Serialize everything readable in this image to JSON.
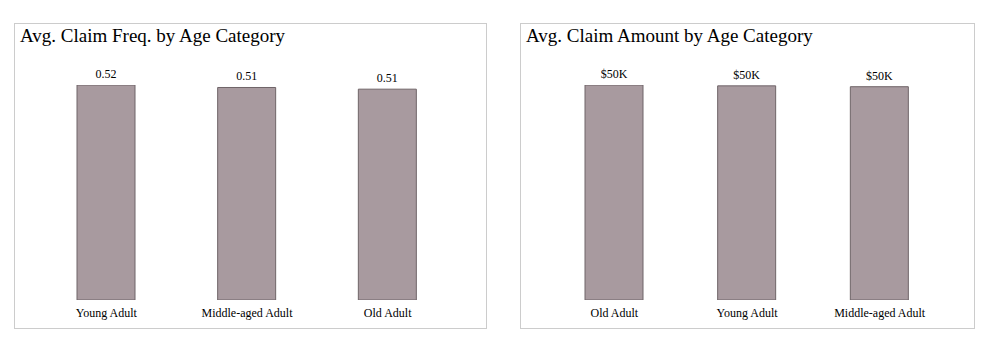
{
  "chart_data": [
    {
      "type": "bar",
      "title": "Avg. Claim Freq. by Age Category",
      "categories": [
        "Young Adult",
        "Middle-aged Adult",
        "Old Adult"
      ],
      "values": [
        0.517,
        0.511,
        0.507
      ],
      "value_labels": [
        "0.52",
        "0.51",
        "0.51"
      ],
      "color": "#a89a9f",
      "ylim": [
        0,
        0.517
      ],
      "data_labels": true,
      "tick_labels": "x"
    },
    {
      "type": "bar",
      "title": "Avg. Claim Amount by Age Category",
      "categories": [
        "Old Adult",
        "Young Adult",
        "Middle-aged Adult"
      ],
      "values": [
        50200,
        50000,
        49800
      ],
      "value_labels": [
        "$50K",
        "$50K",
        "$50K"
      ],
      "color": "#a89a9f",
      "ylim": [
        0,
        50200
      ],
      "data_labels": true,
      "tick_labels": "x"
    }
  ]
}
